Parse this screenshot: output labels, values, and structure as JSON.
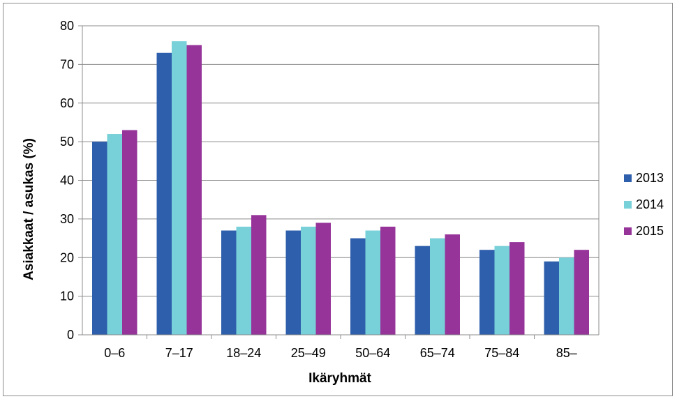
{
  "chart_data": {
    "type": "bar",
    "title": "",
    "xlabel": "Ikäryhmät",
    "ylabel": "Asiakkaat / asukas (%)",
    "ylim": [
      0,
      80
    ],
    "yticks": [
      0,
      10,
      20,
      30,
      40,
      50,
      60,
      70,
      80
    ],
    "grid": true,
    "legend_position": "right",
    "categories": [
      "0–6",
      "7–17",
      "18–24",
      "25–49",
      "50–64",
      "65–74",
      "75–84",
      "85–"
    ],
    "series": [
      {
        "name": "2013",
        "color": "#2e5fac",
        "values": [
          50,
          73,
          27,
          27,
          25,
          23,
          22,
          19
        ]
      },
      {
        "name": "2014",
        "color": "#78d0d8",
        "values": [
          52,
          76,
          28,
          28,
          27,
          25,
          23,
          20
        ]
      },
      {
        "name": "2015",
        "color": "#96349a",
        "values": [
          53,
          75,
          31,
          29,
          28,
          26,
          24,
          22
        ]
      }
    ]
  }
}
